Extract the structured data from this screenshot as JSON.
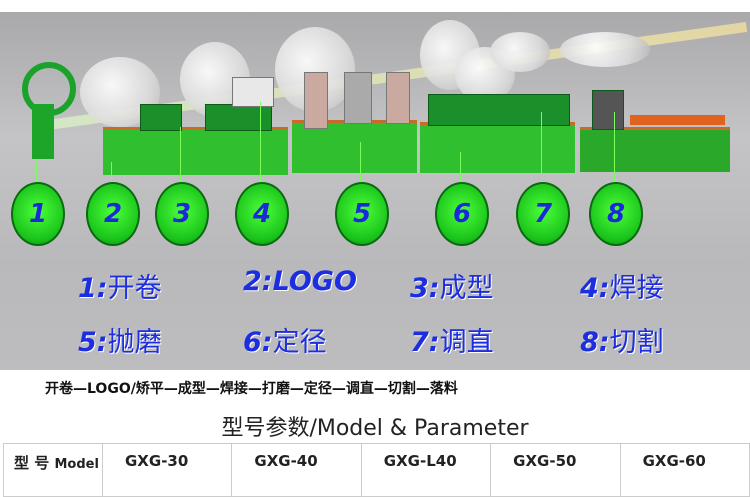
{
  "stations": [
    {
      "num": "1",
      "label": "开卷"
    },
    {
      "num": "2",
      "label": "LOGO"
    },
    {
      "num": "3",
      "label": "成型"
    },
    {
      "num": "4",
      "label": "焊接"
    },
    {
      "num": "5",
      "label": "抛磨"
    },
    {
      "num": "6",
      "label": "定径"
    },
    {
      "num": "7",
      "label": "调直"
    },
    {
      "num": "8",
      "label": "切割"
    }
  ],
  "process_line": "开卷—LOGO/矫平—成型—焊接—打磨—定径—调直—切割—落料",
  "section_title": "型号参数/Model & Parameter",
  "table": {
    "header_zh": "型 号",
    "header_en": "Model",
    "models": [
      "GXG-30",
      "GXG-40",
      "GXG-L40",
      "GXG-50",
      "GXG-60"
    ]
  },
  "colors": {
    "circle": "#22d022",
    "number": "#1a2ad8",
    "machine": "#2fbf2f"
  }
}
